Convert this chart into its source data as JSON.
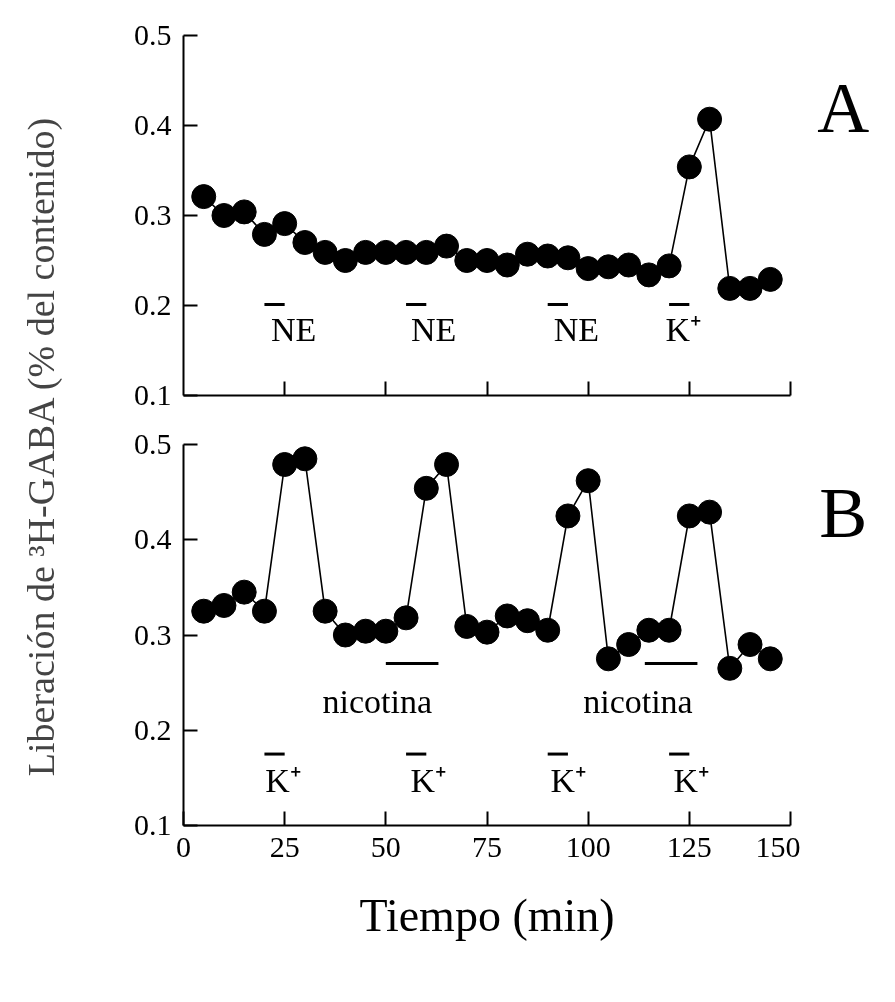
{
  "chart_data": [
    {
      "type": "line",
      "marker": "circle",
      "line_style": "solid",
      "grid": false,
      "tick_labels": "y",
      "ylabel": "Liberación de ³H-GABA (% del contenido)",
      "x": [
        5,
        10,
        15,
        20,
        25,
        30,
        35,
        40,
        45,
        50,
        55,
        60,
        65,
        70,
        75,
        80,
        85,
        90,
        95,
        100,
        105,
        110,
        115,
        120,
        125,
        130,
        135,
        140,
        145
      ],
      "series": [
        {
          "color": "#000000",
          "values": [
            0.321,
            0.3,
            0.304,
            0.279,
            0.291,
            0.27,
            0.259,
            0.25,
            0.259,
            0.259,
            0.259,
            0.259,
            0.266,
            0.25,
            0.25,
            0.245,
            0.257,
            0.255,
            0.253,
            0.241,
            0.243,
            0.245,
            0.234,
            0.244,
            0.354,
            0.407,
            0.219,
            0.219,
            0.229
          ]
        }
      ],
      "xlim": [
        0,
        150
      ],
      "xticks": [
        {
          "value": 25,
          "label": null
        },
        {
          "value": 50,
          "label": null
        },
        {
          "value": 75,
          "label": null
        },
        {
          "value": 100,
          "label": null
        },
        {
          "value": 125,
          "label": null
        },
        {
          "value": 150,
          "label": null
        }
      ],
      "ylim": [
        0.1,
        0.5
      ],
      "yticks": [
        {
          "value": 0.1,
          "label": "0.1"
        },
        {
          "value": 0.2,
          "label": "0.2"
        },
        {
          "value": 0.3,
          "label": "0.3"
        },
        {
          "value": 0.4,
          "label": "0.4"
        },
        {
          "value": 0.5,
          "label": "0.5"
        }
      ],
      "annotations": [
        "NE",
        "NE",
        "NE",
        "K⁺",
        "A"
      ]
    },
    {
      "type": "line",
      "marker": "circle",
      "line_style": "solid",
      "grid": false,
      "xlabel": "Tiempo (min)",
      "x": [
        5,
        10,
        15,
        20,
        25,
        30,
        35,
        40,
        45,
        50,
        55,
        60,
        65,
        70,
        75,
        80,
        85,
        90,
        95,
        100,
        105,
        110,
        115,
        120,
        125,
        130,
        135,
        140,
        145
      ],
      "series": [
        {
          "color": "#000000",
          "values": [
            0.325,
            0.331,
            0.345,
            0.325,
            0.479,
            0.485,
            0.325,
            0.3,
            0.304,
            0.304,
            0.318,
            0.454,
            0.479,
            0.309,
            0.303,
            0.32,
            0.315,
            0.305,
            0.425,
            0.462,
            0.275,
            0.29,
            0.305,
            0.305,
            0.425,
            0.429,
            0.265,
            0.29,
            0.275
          ]
        }
      ],
      "xlim": [
        0,
        150
      ],
      "xticks": [
        0,
        25,
        50,
        75,
        100,
        125,
        150
      ],
      "ylim": [
        0.1,
        0.5
      ],
      "yticks": [
        {
          "value": 0.1,
          "label": "0.1"
        },
        {
          "value": 0.2,
          "label": "0.2"
        },
        {
          "value": 0.3,
          "label": "0.3"
        },
        {
          "value": 0.4,
          "label": "0.4"
        },
        {
          "value": 0.5,
          "label": "0.5"
        }
      ],
      "annotations": [
        "nicotina",
        "nicotina",
        "K⁺",
        "K⁺",
        "K⁺",
        "K⁺",
        "B"
      ]
    }
  ]
}
